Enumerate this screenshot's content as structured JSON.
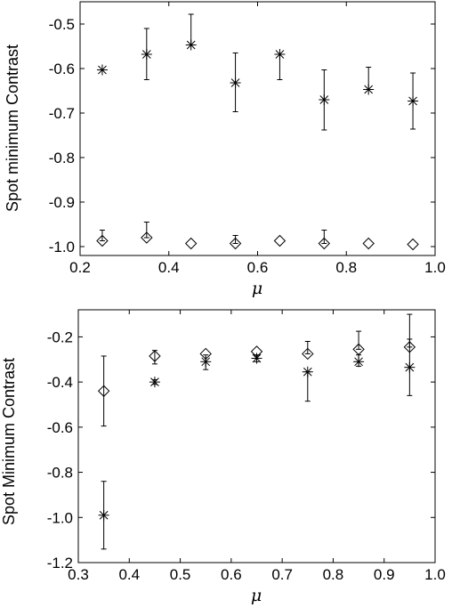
{
  "chart_data": [
    {
      "type": "scatter",
      "xlabel": "μ",
      "ylabel": "Spot minimum Contrast",
      "xlim": [
        0.2,
        1.0
      ],
      "ylim": [
        -1.02,
        -0.45
      ],
      "xticks": [
        "0.2",
        "0.4",
        "0.6",
        "0.8",
        "1.0"
      ],
      "yticks": [
        "-0.5",
        "-0.6",
        "-0.7",
        "-0.8",
        "-0.9",
        "-1.0"
      ],
      "grid": false,
      "series": [
        {
          "marker": "star",
          "points": [
            {
              "x": 0.25,
              "y": -0.603,
              "lo": -0.603,
              "hi": -0.603
            },
            {
              "x": 0.35,
              "y": -0.568,
              "lo": -0.625,
              "hi": -0.51
            },
            {
              "x": 0.45,
              "y": -0.547,
              "lo": -0.547,
              "hi": -0.478
            },
            {
              "x": 0.55,
              "y": -0.632,
              "lo": -0.697,
              "hi": -0.565
            },
            {
              "x": 0.65,
              "y": -0.568,
              "lo": -0.625,
              "hi": -0.568
            },
            {
              "x": 0.75,
              "y": -0.67,
              "lo": -0.738,
              "hi": -0.603
            },
            {
              "x": 0.85,
              "y": -0.647,
              "lo": -0.647,
              "hi": -0.597
            },
            {
              "x": 0.95,
              "y": -0.673,
              "lo": -0.736,
              "hi": -0.61
            }
          ]
        },
        {
          "marker": "diamond",
          "points": [
            {
              "x": 0.25,
              "y": -0.987,
              "lo": -0.987,
              "hi": -0.963
            },
            {
              "x": 0.35,
              "y": -0.98,
              "lo": -0.98,
              "hi": -0.945
            },
            {
              "x": 0.45,
              "y": -0.993,
              "lo": -0.993,
              "hi": -0.993
            },
            {
              "x": 0.55,
              "y": -0.993,
              "lo": -0.993,
              "hi": -0.975
            },
            {
              "x": 0.65,
              "y": -0.987,
              "lo": -0.987,
              "hi": -0.987
            },
            {
              "x": 0.75,
              "y": -0.993,
              "lo": -0.993,
              "hi": -0.963
            },
            {
              "x": 0.85,
              "y": -0.993,
              "lo": -0.993,
              "hi": -0.993
            },
            {
              "x": 0.95,
              "y": -0.995,
              "lo": -0.995,
              "hi": -0.995
            }
          ]
        }
      ]
    },
    {
      "type": "scatter",
      "xlabel": "μ",
      "ylabel": "Spot Minimum Contrast",
      "xlim": [
        0.3,
        1.0
      ],
      "ylim": [
        -1.2,
        -0.08
      ],
      "xticks": [
        "0.3",
        "0.4",
        "0.5",
        "0.6",
        "0.7",
        "0.8",
        "0.9",
        "1.0"
      ],
      "yticks": [
        "-0.2",
        "-0.4",
        "-0.6",
        "-0.8",
        "-1.0",
        "-1.2"
      ],
      "grid": false,
      "series": [
        {
          "marker": "diamond",
          "points": [
            {
              "x": 0.35,
              "y": -0.44,
              "lo": -0.595,
              "hi": -0.285
            },
            {
              "x": 0.45,
              "y": -0.285,
              "lo": -0.32,
              "hi": -0.26
            },
            {
              "x": 0.55,
              "y": -0.275,
              "lo": -0.275,
              "hi": -0.275
            },
            {
              "x": 0.65,
              "y": -0.265,
              "lo": -0.265,
              "hi": -0.265
            },
            {
              "x": 0.75,
              "y": -0.275,
              "lo": -0.275,
              "hi": -0.22
            },
            {
              "x": 0.85,
              "y": -0.255,
              "lo": -0.255,
              "hi": -0.175
            },
            {
              "x": 0.95,
              "y": -0.245,
              "lo": -0.245,
              "hi": -0.1
            }
          ]
        },
        {
          "marker": "star",
          "points": [
            {
              "x": 0.35,
              "y": -0.99,
              "lo": -1.14,
              "hi": -0.84
            },
            {
              "x": 0.45,
              "y": -0.4,
              "lo": -0.41,
              "hi": -0.39
            },
            {
              "x": 0.55,
              "y": -0.31,
              "lo": -0.345,
              "hi": -0.28
            },
            {
              "x": 0.65,
              "y": -0.295,
              "lo": -0.31,
              "hi": -0.28
            },
            {
              "x": 0.75,
              "y": -0.355,
              "lo": -0.485,
              "hi": -0.355
            },
            {
              "x": 0.85,
              "y": -0.31,
              "lo": -0.33,
              "hi": -0.28
            },
            {
              "x": 0.95,
              "y": -0.335,
              "lo": -0.46,
              "hi": -0.21
            }
          ]
        }
      ]
    }
  ]
}
